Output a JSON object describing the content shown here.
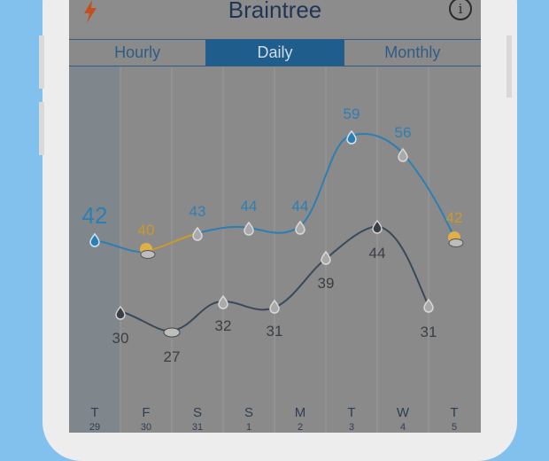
{
  "app": {
    "title": "Braintree",
    "tabs": [
      {
        "label": "Hourly",
        "active": false
      },
      {
        "label": "Daily",
        "active": true
      },
      {
        "label": "Monthly",
        "active": false
      }
    ]
  },
  "current_temp": "42",
  "days": [
    {
      "dow": "T",
      "date": "29",
      "high": null,
      "low": "30",
      "high_icon": "raindrop-icon",
      "low_icon": "raindrop-icon"
    },
    {
      "dow": "F",
      "date": "30",
      "high": "40",
      "low": "27",
      "high_icon": "partly-sunny-icon",
      "low_icon": "cloud-icon"
    },
    {
      "dow": "S",
      "date": "31",
      "high": "43",
      "low": "32",
      "high_icon": "raindrop-icon",
      "low_icon": "raindrop-icon"
    },
    {
      "dow": "S",
      "date": "1",
      "high": "44",
      "low": "31",
      "high_icon": "raindrop-icon",
      "low_icon": "raindrop-icon"
    },
    {
      "dow": "M",
      "date": "2",
      "high": "44",
      "low": "39",
      "high_icon": "raindrop-icon",
      "low_icon": "raindrop-icon"
    },
    {
      "dow": "T",
      "date": "3",
      "high": "59",
      "low": "44",
      "high_icon": "raindrop-icon",
      "low_icon": "raindrop-icon"
    },
    {
      "dow": "W",
      "date": "4",
      "high": "56",
      "low": "31",
      "high_icon": "raindrop-icon",
      "low_icon": "raindrop-icon"
    },
    {
      "dow": "T",
      "date": "5",
      "high": "42",
      "low": null,
      "high_icon": "partly-sunny-icon",
      "low_icon": null
    }
  ],
  "colors": {
    "high_line": "#2d7fb3",
    "low_line": "#3a4a5a",
    "accent_orange": "#c99a2a",
    "segment_active": "#1f5e8c",
    "background": "#82c0ee"
  }
}
